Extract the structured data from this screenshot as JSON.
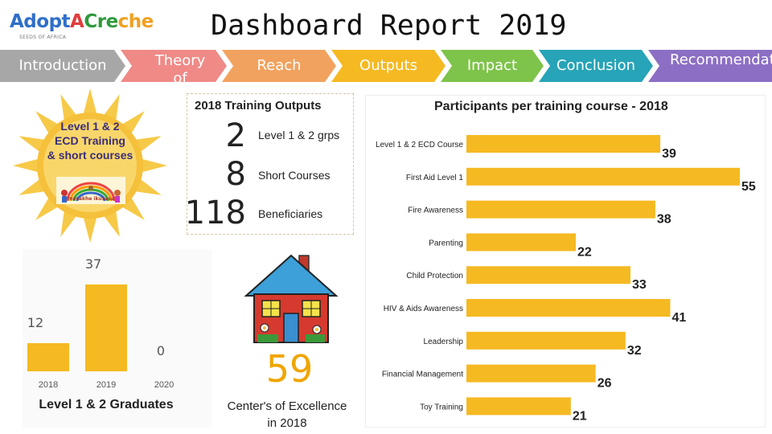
{
  "header": {
    "logo": {
      "part1": "Adopt",
      "part2": "A",
      "part3": "Cre",
      "part4": "che",
      "tagline": "SEEDS OF AFRICA"
    },
    "title": "Dashboard Report 2019"
  },
  "nav": {
    "tabs": [
      {
        "label": "Introduction",
        "color": "#a7a7a7"
      },
      {
        "label": "Theory of Change",
        "color": "#ef8a87"
      },
      {
        "label": "Reach",
        "color": "#f2a25f"
      },
      {
        "label": "Outputs",
        "color": "#f5b922"
      },
      {
        "label": "Impact",
        "color": "#7ec34a"
      },
      {
        "label": "Conclusion",
        "color": "#27a4b7"
      },
      {
        "label": "Recommendations",
        "color": "#8c6fc4"
      }
    ]
  },
  "badge": {
    "line1": "Level 1 & 2",
    "line2": "ECD Training",
    "line3": "& short courses",
    "caption": "masakhe ikusasa"
  },
  "training_outputs": {
    "title": "2018 Training Outputs",
    "items": [
      {
        "value": "2",
        "label": "Level 1 & 2 grps"
      },
      {
        "value": "8",
        "label": "Short Courses"
      },
      {
        "value": "118",
        "label": "Beneficiaries"
      }
    ]
  },
  "centers": {
    "value": "59",
    "label_line1": "Center's of Excellence",
    "label_line2": "in 2018"
  },
  "chart_data": [
    {
      "type": "bar",
      "title": "Level 1 & 2 Graduates",
      "categories": [
        "2018",
        "2019",
        "2020"
      ],
      "values": [
        12,
        37,
        0
      ],
      "value_labels": [
        "12",
        "37",
        "0"
      ],
      "ylim": [
        0,
        37
      ],
      "grid": false,
      "colors": {
        "bar": "#f5b922",
        "label": "#555555"
      }
    },
    {
      "type": "bar",
      "orientation": "horizontal",
      "title": "Participants per training course - 2018",
      "categories": [
        "Level 1 & 2 ECD Course",
        "First Aid Level 1",
        "Fire Awareness",
        "Parenting",
        "Child Protection",
        "HIV & Aids Awareness",
        "Leadership",
        "Financial Management",
        "Toy Training"
      ],
      "values": [
        39,
        55,
        38,
        22,
        33,
        41,
        32,
        26,
        21
      ],
      "value_labels": [
        "39",
        "55",
        "38",
        "22",
        "33",
        "41",
        "32",
        "26",
        "21"
      ],
      "xlim": [
        0,
        55
      ],
      "grid": false,
      "colors": {
        "bar": "#f5b922",
        "label": "#222222"
      }
    }
  ]
}
